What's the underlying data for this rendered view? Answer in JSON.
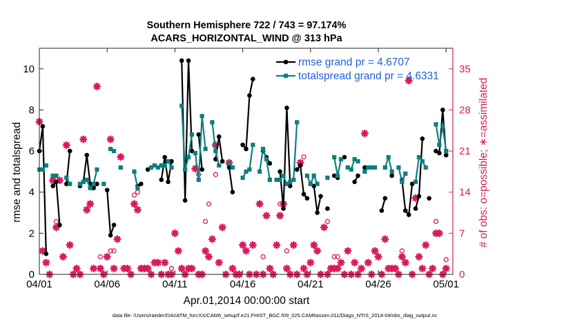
{
  "chart_data": {
    "type": "line",
    "title_line1": "Southern Hemisphere 722 / 743 = 97.174%",
    "title_line2": "ACARS_HORIZONTAL_WIND @ 313 hPa",
    "xlabel": "Apr.01,2014 00:00:00 start",
    "ylabel": "rmse and totalspread",
    "ylabel_right": "# of obs: o=possible; ∗=assimilated",
    "footnote": "data file: /Users/raeder/DAI/ATM_forcXX/CAM6_setup/f.e21.FHIST_BGC.f09_025.CAM6assim.011/Diags_NTrS_2014-04/obs_diag_output.nc",
    "xlim": [
      0,
      30.5
    ],
    "ylim": [
      0,
      11
    ],
    "ylim_right": [
      0,
      38.5
    ],
    "x_ticks": [
      0,
      5,
      10,
      15,
      20,
      25,
      30
    ],
    "x_tick_labels": [
      "04/01",
      "04/06",
      "04/11",
      "04/16",
      "04/21",
      "04/26",
      "05/01"
    ],
    "y_ticks": [
      0,
      2,
      4,
      6,
      8,
      10
    ],
    "y_tick_labels": [
      "0",
      "2",
      "4",
      "6",
      "8",
      "10"
    ],
    "y_ticks_right": [
      0,
      7,
      14,
      21,
      28,
      35
    ],
    "y_tick_labels_right": [
      "0",
      "7",
      "14",
      "21",
      "28",
      "35"
    ],
    "series": [
      {
        "name": "rmse grand pr = 4.6707",
        "color": "#000000",
        "segments": [
          [
            [
              0,
              6.0
            ],
            [
              0.25,
              7.2
            ],
            [
              0.5,
              1.0
            ]
          ],
          [
            [
              1.0,
              4.3
            ],
            [
              1.25,
              4.5
            ],
            [
              1.5,
              2.4
            ]
          ],
          [
            [
              2.0,
              4.4
            ],
            [
              2.25,
              6.0
            ]
          ],
          [
            [
              3.0,
              4.3
            ],
            [
              3.25,
              4.5
            ],
            [
              3.5,
              5.8
            ],
            [
              3.75,
              4.4
            ]
          ],
          [
            [
              4.0,
              4.2
            ],
            [
              4.25,
              4.4
            ]
          ],
          [
            [
              5.0,
              4.1
            ],
            [
              5.25,
              1.9
            ],
            [
              5.5,
              2.4
            ]
          ],
          [
            [
              7.25,
              4.3
            ],
            [
              7.5,
              4.4
            ]
          ],
          [
            [
              8.0,
              5.1
            ]
          ],
          [
            [
              9.0,
              4.6
            ],
            [
              9.25,
              5.7
            ],
            [
              9.5,
              4.5
            ],
            [
              9.75,
              5.5
            ]
          ],
          [
            [
              10.5,
              10.4
            ],
            [
              10.75,
              3.6
            ],
            [
              11.0,
              10.4
            ],
            [
              11.25,
              6.0
            ]
          ],
          [
            [
              11.75,
              6.8
            ],
            [
              12.0,
              5.1
            ]
          ],
          [
            [
              13.0,
              5.6
            ],
            [
              13.25,
              6.7
            ],
            [
              13.5,
              5.5
            ]
          ],
          [
            [
              14.0,
              5.2
            ],
            [
              14.25,
              4.0
            ]
          ],
          [
            [
              15.0,
              6.3
            ],
            [
              15.25,
              6.1
            ],
            [
              15.5,
              8.7
            ],
            [
              15.75,
              9.5
            ]
          ],
          [
            [
              16.5,
              6.0
            ],
            [
              16.75,
              5.7
            ],
            [
              17.0,
              5.4
            ]
          ],
          [
            [
              17.75,
              5.0
            ],
            [
              18.0,
              3.2
            ],
            [
              18.25,
              8.1
            ],
            [
              18.5,
              4.3
            ]
          ],
          [
            [
              19.0,
              5.1
            ],
            [
              19.25,
              5.3
            ],
            [
              19.5,
              3.9
            ],
            [
              19.75,
              3.7
            ]
          ],
          [
            [
              20.25,
              4.3
            ],
            [
              20.5,
              3.0
            ],
            [
              20.75,
              3.8
            ]
          ],
          [
            [
              21.25,
              3.2
            ]
          ],
          [
            [
              21.75,
              4.8
            ],
            [
              22.0,
              4.7
            ]
          ],
          [
            [
              22.5,
              5.7
            ]
          ],
          [
            [
              23.25,
              4.5
            ],
            [
              23.5,
              4.8
            ]
          ],
          [
            [
              24.0,
              5.2
            ]
          ],
          [
            [
              25.25,
              3.1
            ],
            [
              25.5,
              3.7
            ]
          ],
          [
            [
              26.0,
              4.8
            ]
          ],
          [
            [
              26.75,
              4.6
            ],
            [
              27.0,
              3.1
            ],
            [
              27.25,
              2.9
            ],
            [
              27.5,
              4.4
            ]
          ],
          [
            [
              27.75,
              3.2
            ],
            [
              28.0,
              3.8
            ],
            [
              28.25,
              6.6
            ]
          ],
          [
            [
              28.75,
              3.7
            ]
          ],
          [
            [
              29.25,
              6.0
            ]
          ],
          [
            [
              29.5,
              5.9
            ],
            [
              29.75,
              8.0
            ],
            [
              30.0,
              5.8
            ]
          ]
        ]
      },
      {
        "name": "totalspread grand pr = 4.6331",
        "color": "#0d7f80",
        "segments": [
          [
            [
              0,
              5.1
            ],
            [
              0.25,
              5.1
            ],
            [
              0.5,
              5.3
            ]
          ],
          [
            [
              1.0,
              4.8
            ],
            [
              1.25,
              4.8
            ]
          ],
          [
            [
              2.0,
              4.7
            ],
            [
              2.25,
              4.4
            ]
          ],
          [
            [
              3.0,
              4.4
            ],
            [
              3.25,
              4.5
            ],
            [
              3.5,
              4.6
            ],
            [
              3.75,
              4.2
            ]
          ],
          [
            [
              4.0,
              4.4
            ],
            [
              4.25,
              5.1
            ]
          ],
          [
            [
              4.75,
              4.4
            ]
          ],
          [
            [
              5.25,
              6.1
            ],
            [
              5.5,
              6.0
            ]
          ],
          [
            [
              6.0,
              5.2
            ]
          ],
          [
            [
              7.0,
              5.0
            ],
            [
              7.25,
              4.2
            ]
          ],
          [
            [
              8.25,
              5.2
            ],
            [
              8.5,
              5.3
            ],
            [
              8.75,
              5.2
            ],
            [
              9.0,
              5.3
            ],
            [
              9.25,
              5.3
            ],
            [
              9.5,
              5.5
            ],
            [
              9.75,
              5.2
            ]
          ],
          [
            [
              10.5,
              8.2
            ],
            [
              10.75,
              5.1
            ],
            [
              11.0,
              5.7
            ],
            [
              11.25,
              6.8
            ]
          ],
          [
            [
              11.5,
              5.9
            ],
            [
              11.75,
              4.6
            ],
            [
              12.0,
              7.7
            ],
            [
              12.25,
              6.1
            ]
          ],
          [
            [
              12.75,
              7.4
            ],
            [
              13.0,
              6.0
            ],
            [
              13.25,
              5.3
            ]
          ],
          [
            [
              14.0,
              5.4
            ],
            [
              14.25,
              5.2
            ]
          ],
          [
            [
              15.0,
              4.7
            ],
            [
              15.25,
              5.0
            ]
          ],
          [
            [
              15.5,
              5.1
            ],
            [
              15.75,
              6.3
            ]
          ],
          [
            [
              16.25,
              5.0
            ],
            [
              16.5,
              6.1
            ],
            [
              16.75,
              5.6
            ],
            [
              17.0,
              4.6
            ]
          ],
          [
            [
              17.5,
              4.6
            ],
            [
              17.75,
              4.6
            ],
            [
              18.0,
              4.8
            ],
            [
              18.25,
              4.4
            ],
            [
              18.5,
              4.5
            ],
            [
              18.75,
              4.6
            ],
            [
              19.0,
              7.4
            ]
          ],
          [
            [
              19.75,
              4.8
            ],
            [
              20.0,
              4.4
            ],
            [
              20.25,
              4.8
            ],
            [
              20.5,
              4.4
            ]
          ],
          [
            [
              21.25,
              4.7
            ]
          ],
          [
            [
              21.75,
              5.7
            ],
            [
              22.0,
              4.8
            ],
            [
              22.25,
              5.6
            ]
          ],
          [
            [
              22.75,
              5.2
            ],
            [
              23.0,
              5.1
            ],
            [
              23.25,
              5.6
            ],
            [
              23.5,
              5.5
            ]
          ],
          [
            [
              24.0,
              5.0
            ],
            [
              24.25,
              5.2
            ],
            [
              24.5,
              5.2
            ],
            [
              24.75,
              5.2
            ]
          ],
          [
            [
              25.5,
              5.2
            ],
            [
              25.75,
              5.7
            ],
            [
              26.0,
              5.0
            ]
          ],
          [
            [
              26.5,
              5.2
            ],
            [
              26.75,
              4.5
            ],
            [
              27.0,
              4.9
            ]
          ],
          [
            [
              27.75,
              4.5
            ],
            [
              28.0,
              5.7
            ],
            [
              28.25,
              5.5
            ],
            [
              28.5,
              5.2
            ]
          ],
          [
            [
              29.25,
              7.3
            ],
            [
              29.5,
              6.3
            ],
            [
              29.75,
              7.2
            ],
            [
              30.0,
              6.0
            ]
          ]
        ]
      }
    ],
    "obs_possible": [
      [
        0,
        26
      ],
      [
        0.25,
        4
      ],
      [
        1.25,
        9
      ],
      [
        4.5,
        3
      ],
      [
        5.25,
        4
      ],
      [
        5.5,
        4
      ],
      [
        7.0,
        13.5
      ],
      [
        7.25,
        14
      ],
      [
        9.75,
        1
      ],
      [
        11.75,
        17
      ],
      [
        12.25,
        9
      ],
      [
        12.5,
        12
      ],
      [
        13.0,
        17
      ],
      [
        16.5,
        3
      ],
      [
        17.75,
        12
      ],
      [
        18.25,
        4
      ],
      [
        19.5,
        20
      ],
      [
        21.25,
        9
      ],
      [
        21.75,
        3
      ],
      [
        22.0,
        3
      ],
      [
        26.75,
        4
      ],
      [
        29.25,
        9
      ],
      [
        30.0,
        2.5
      ]
    ],
    "obs_assimilated": [
      [
        0,
        26
      ],
      [
        0.25,
        4
      ],
      [
        0.5,
        2
      ],
      [
        0.75,
        0
      ],
      [
        1.0,
        16
      ],
      [
        1.25,
        8
      ],
      [
        1.5,
        16
      ],
      [
        1.75,
        3
      ],
      [
        2.0,
        22
      ],
      [
        2.25,
        5
      ],
      [
        2.5,
        0
      ],
      [
        2.75,
        1
      ],
      [
        3.0,
        0
      ],
      [
        3.25,
        23
      ],
      [
        3.5,
        11
      ],
      [
        3.75,
        12
      ],
      [
        4.0,
        1
      ],
      [
        4.25,
        32
      ],
      [
        4.5,
        1
      ],
      [
        4.75,
        0
      ],
      [
        5.0,
        3
      ],
      [
        5.25,
        23
      ],
      [
        5.5,
        1
      ],
      [
        5.75,
        6
      ],
      [
        6.0,
        20
      ],
      [
        6.25,
        1
      ],
      [
        6.5,
        1
      ],
      [
        6.75,
        0
      ],
      [
        7.0,
        12
      ],
      [
        7.25,
        11
      ],
      [
        7.5,
        1
      ],
      [
        7.75,
        1
      ],
      [
        8.0,
        1
      ],
      [
        8.25,
        0
      ],
      [
        8.5,
        2
      ],
      [
        8.75,
        2
      ],
      [
        9.0,
        0
      ],
      [
        9.25,
        2
      ],
      [
        9.5,
        0
      ],
      [
        9.75,
        0
      ],
      [
        10.0,
        7
      ],
      [
        10.25,
        4
      ],
      [
        10.5,
        1
      ],
      [
        10.75,
        0
      ],
      [
        11.0,
        1
      ],
      [
        11.25,
        1
      ],
      [
        11.5,
        18
      ],
      [
        11.75,
        0
      ],
      [
        12.0,
        0
      ],
      [
        12.25,
        4
      ],
      [
        12.5,
        3
      ],
      [
        12.75,
        6
      ],
      [
        13.0,
        22
      ],
      [
        13.25,
        2
      ],
      [
        13.5,
        8
      ],
      [
        13.75,
        0
      ],
      [
        14.0,
        19
      ],
      [
        14.25,
        1
      ],
      [
        14.5,
        0
      ],
      [
        14.75,
        0
      ],
      [
        15.0,
        5
      ],
      [
        15.25,
        4
      ],
      [
        15.5,
        0
      ],
      [
        15.75,
        5
      ],
      [
        16.0,
        0
      ],
      [
        16.25,
        12
      ],
      [
        16.5,
        0
      ],
      [
        16.75,
        10
      ],
      [
        17.0,
        1
      ],
      [
        17.25,
        0
      ],
      [
        17.5,
        5
      ],
      [
        17.75,
        10
      ],
      [
        18.0,
        12
      ],
      [
        18.25,
        1
      ],
      [
        18.5,
        0
      ],
      [
        18.75,
        5
      ],
      [
        19.0,
        0
      ],
      [
        19.25,
        19
      ],
      [
        19.5,
        1
      ],
      [
        19.75,
        0
      ],
      [
        20.0,
        2
      ],
      [
        20.25,
        5
      ],
      [
        20.5,
        4
      ],
      [
        20.75,
        0
      ],
      [
        21.0,
        8
      ],
      [
        21.25,
        0
      ],
      [
        21.5,
        1
      ],
      [
        21.75,
        1
      ],
      [
        22.0,
        1
      ],
      [
        22.25,
        2
      ],
      [
        22.5,
        0
      ],
      [
        22.75,
        4
      ],
      [
        23.0,
        0
      ],
      [
        23.25,
        2
      ],
      [
        23.5,
        0
      ],
      [
        23.75,
        1
      ],
      [
        24.0,
        24
      ],
      [
        24.25,
        2
      ],
      [
        24.5,
        0
      ],
      [
        24.75,
        4
      ],
      [
        25.0,
        3
      ],
      [
        25.25,
        0
      ],
      [
        25.5,
        6
      ],
      [
        25.75,
        1
      ],
      [
        26.0,
        1
      ],
      [
        26.25,
        1
      ],
      [
        26.5,
        0
      ],
      [
        26.75,
        3
      ],
      [
        27.0,
        2
      ],
      [
        27.25,
        33
      ],
      [
        27.5,
        0
      ],
      [
        27.75,
        13
      ],
      [
        28.0,
        3
      ],
      [
        28.25,
        1
      ],
      [
        28.5,
        5
      ],
      [
        28.75,
        0
      ],
      [
        29.0,
        1
      ],
      [
        29.25,
        7
      ],
      [
        29.5,
        7
      ],
      [
        29.75,
        0
      ],
      [
        30.0,
        1
      ]
    ]
  }
}
